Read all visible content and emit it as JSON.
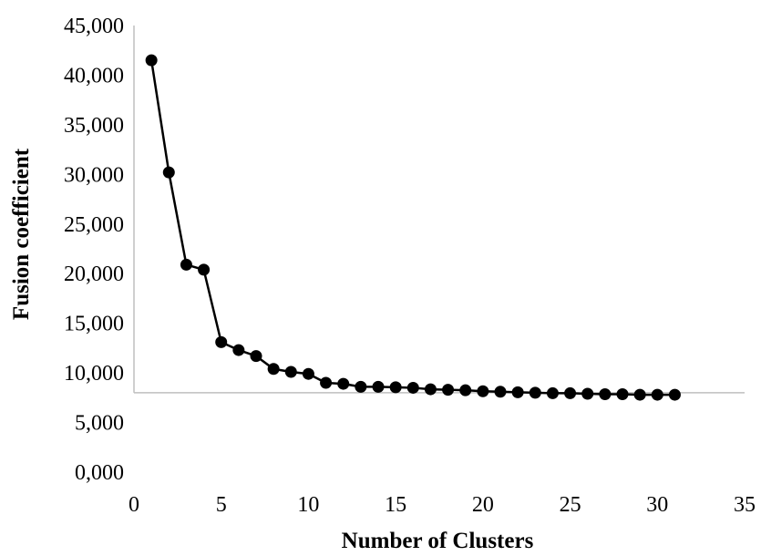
{
  "chart_data": {
    "type": "scatter",
    "title": "",
    "xlabel": "Number of Clusters",
    "ylabel": "Fusion coefficient",
    "xlim": [
      0,
      35
    ],
    "ylim": [
      0,
      45000
    ],
    "x_ticks": [
      "0",
      "5",
      "10",
      "15",
      "20",
      "25",
      "30",
      "35"
    ],
    "y_ticks": [
      "0,000",
      "5,000",
      "10,000",
      "15,000",
      "20,000",
      "25,000",
      "30,000",
      "35,000",
      "40,000",
      "45,000"
    ],
    "x_axis_crosses_y_at": 8000,
    "grid": false,
    "legend": "none",
    "series": [
      {
        "x": [
          1,
          2,
          3,
          4,
          5,
          6,
          7,
          8,
          9,
          10,
          11,
          12,
          13,
          14,
          15,
          16,
          17,
          18,
          19,
          20,
          21,
          22,
          23,
          24,
          25,
          26,
          27,
          28,
          29,
          30,
          31
        ],
        "y": [
          41500,
          30200,
          20900,
          20400,
          13100,
          12300,
          11700,
          10400,
          10100,
          9900,
          9000,
          8900,
          8600,
          8600,
          8550,
          8500,
          8350,
          8300,
          8250,
          8150,
          8100,
          8050,
          8000,
          7950,
          7950,
          7900,
          7850,
          7850,
          7800,
          7800,
          7800
        ],
        "marker": "circle",
        "line": true,
        "color": "#000000"
      }
    ]
  }
}
